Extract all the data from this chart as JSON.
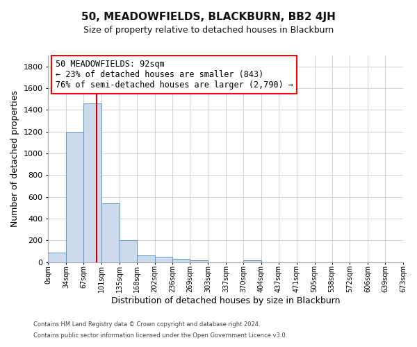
{
  "title": "50, MEADOWFIELDS, BLACKBURN, BB2 4JH",
  "subtitle": "Size of property relative to detached houses in Blackburn",
  "xlabel": "Distribution of detached houses by size in Blackburn",
  "ylabel": "Number of detached properties",
  "footnote1": "Contains HM Land Registry data © Crown copyright and database right 2024.",
  "footnote2": "Contains public sector information licensed under the Open Government Licence v3.0.",
  "bar_color": "#ccdaeb",
  "bar_edgecolor": "#5a9ac8",
  "annotation_line1": "50 MEADOWFIELDS: 92sqm",
  "annotation_line2": "← 23% of detached houses are smaller (843)",
  "annotation_line3": "76% of semi-detached houses are larger (2,790) →",
  "vline_x": 92,
  "vline_color": "#cc0000",
  "bin_edges": [
    0,
    34,
    67,
    101,
    135,
    168,
    202,
    236,
    269,
    303,
    337,
    370,
    404,
    437,
    471,
    505,
    538,
    572,
    606,
    639,
    673
  ],
  "bin_heights": [
    90,
    1200,
    1460,
    540,
    205,
    65,
    48,
    30,
    20,
    0,
    0,
    15,
    0,
    0,
    0,
    0,
    0,
    0,
    0,
    0
  ],
  "xlim": [
    0,
    673
  ],
  "ylim": [
    0,
    1900
  ],
  "yticks": [
    0,
    200,
    400,
    600,
    800,
    1000,
    1200,
    1400,
    1600,
    1800
  ],
  "xtick_labels": [
    "0sqm",
    "34sqm",
    "67sqm",
    "101sqm",
    "135sqm",
    "168sqm",
    "202sqm",
    "236sqm",
    "269sqm",
    "303sqm",
    "337sqm",
    "370sqm",
    "404sqm",
    "437sqm",
    "471sqm",
    "505sqm",
    "538sqm",
    "572sqm",
    "606sqm",
    "639sqm",
    "673sqm"
  ],
  "grid_color": "#cccccc",
  "background_color": "#ffffff",
  "title_fontsize": 11,
  "subtitle_fontsize": 9,
  "annotation_fontsize": 8.5,
  "axis_label_fontsize": 9,
  "ytick_fontsize": 8,
  "xtick_fontsize": 7
}
